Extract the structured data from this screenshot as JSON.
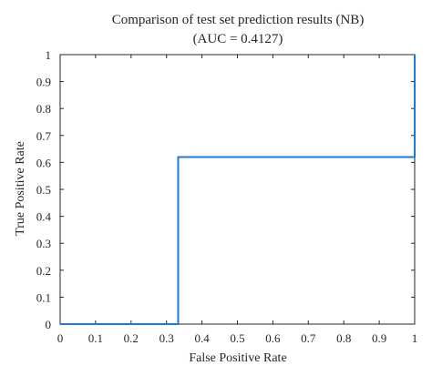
{
  "chart_data": {
    "type": "line",
    "title": "Comparison of test set prediction results (NB)",
    "subtitle": "(AUC = 0.4127)",
    "xlabel": "False Positive Rate",
    "ylabel": "True Positive Rate",
    "xlim": [
      0,
      1
    ],
    "ylim": [
      0,
      1
    ],
    "x_ticks": [
      "0",
      "0.1",
      "0.2",
      "0.3",
      "0.4",
      "0.5",
      "0.6",
      "0.7",
      "0.8",
      "0.9",
      "1"
    ],
    "y_ticks": [
      "0",
      "0.1",
      "0.2",
      "0.3",
      "0.4",
      "0.5",
      "0.6",
      "0.7",
      "0.8",
      "0.9",
      "1"
    ],
    "grid": false,
    "series": [
      {
        "color": "#1f77d4",
        "x": [
          0,
          0.333,
          0.333,
          1,
          1
        ],
        "y": [
          0,
          0,
          0.62,
          0.62,
          1
        ]
      }
    ]
  }
}
